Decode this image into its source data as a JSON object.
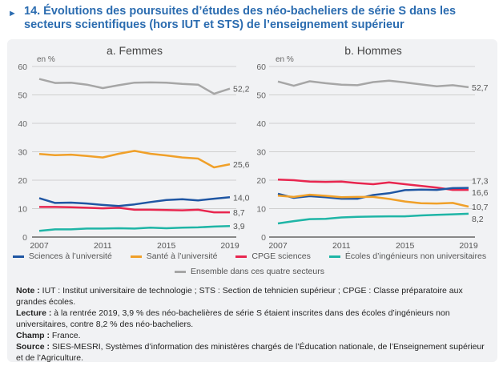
{
  "title": {
    "marker": "►",
    "text": "14. Évolutions des poursuites d’études des néo-bacheliers de série S dans les secteurs scientifiques (hors IUT et STS) de l’enseignement supérieur"
  },
  "colors": {
    "sciences": "#1f56a3",
    "sante": "#f0a029",
    "cpge": "#e8264f",
    "ecoles": "#1fb5a6",
    "ensemble": "#a6a6a6",
    "title": "#2b6cb0"
  },
  "legend": [
    {
      "label": "Sciences à l’université",
      "key": "sciences"
    },
    {
      "label": "Santé à l’université",
      "key": "sante"
    },
    {
      "label": "CPGE sciences",
      "key": "cpge"
    },
    {
      "label": "Écoles d’ingénieurs non universitaires",
      "key": "ecoles"
    },
    {
      "label": "Ensemble dans ces quatre secteurs",
      "key": "ensemble"
    }
  ],
  "chart_data": [
    {
      "type": "line",
      "title": "a. Femmes",
      "ylabel": "en %",
      "ylim": [
        0,
        60
      ],
      "yticks": [
        "0",
        "10",
        "20",
        "30",
        "40",
        "50",
        "60"
      ],
      "xticks": [
        "2007",
        "2011",
        "2015",
        "2019"
      ],
      "grid": true,
      "x": [
        2007,
        2008,
        2009,
        2010,
        2011,
        2012,
        2013,
        2014,
        2015,
        2016,
        2017,
        2018,
        2019
      ],
      "series": [
        {
          "name": "Ensemble dans ces quatre secteurs",
          "key": "ensemble",
          "values": [
            55.6,
            54.2,
            54.3,
            53.6,
            52.4,
            53.4,
            54.3,
            54.4,
            54.3,
            53.9,
            53.6,
            50.4,
            52.2
          ],
          "end_label": "52,2"
        },
        {
          "name": "Santé à l’université",
          "key": "sante",
          "values": [
            29.2,
            28.8,
            29.0,
            28.5,
            28.0,
            29.3,
            30.3,
            29.3,
            28.7,
            28.0,
            27.6,
            24.5,
            25.6
          ],
          "end_label": "25,6"
        },
        {
          "name": "Sciences à l’université",
          "key": "sciences",
          "values": [
            13.7,
            12.0,
            12.1,
            11.8,
            11.3,
            10.9,
            11.5,
            12.3,
            13.0,
            13.3,
            12.9,
            13.5,
            14.0
          ],
          "end_label": "14,0"
        },
        {
          "name": "CPGE sciences",
          "key": "cpge",
          "values": [
            10.6,
            10.6,
            10.5,
            10.3,
            10.1,
            10.3,
            9.6,
            9.6,
            9.5,
            9.4,
            9.6,
            8.7,
            8.7
          ],
          "end_label": "8,7"
        },
        {
          "name": "Écoles d’ingénieurs non universitaires",
          "key": "ecoles",
          "values": [
            2.2,
            2.7,
            2.7,
            3.0,
            3.0,
            3.1,
            3.0,
            3.3,
            3.1,
            3.3,
            3.4,
            3.7,
            3.9
          ],
          "end_label": "3,9"
        }
      ]
    },
    {
      "type": "line",
      "title": "b. Hommes",
      "ylabel": "en %",
      "ylim": [
        0,
        60
      ],
      "yticks": [
        "0",
        "10",
        "20",
        "30",
        "40",
        "50",
        "60"
      ],
      "xticks": [
        "2007",
        "2011",
        "2015",
        "2019"
      ],
      "grid": true,
      "x": [
        2007,
        2008,
        2009,
        2010,
        2011,
        2012,
        2013,
        2014,
        2015,
        2016,
        2017,
        2018,
        2019
      ],
      "series": [
        {
          "name": "Ensemble dans ces quatre secteurs",
          "key": "ensemble",
          "values": [
            54.7,
            53.2,
            54.8,
            54.1,
            53.6,
            53.4,
            54.5,
            55.0,
            54.4,
            53.7,
            53.0,
            53.4,
            52.7
          ],
          "end_label": "52,7"
        },
        {
          "name": "CPGE sciences",
          "key": "cpge",
          "values": [
            20.2,
            20.0,
            19.5,
            19.4,
            19.5,
            19.0,
            18.6,
            19.2,
            18.6,
            18.0,
            17.4,
            16.6,
            16.6
          ],
          "end_label": "16,6"
        },
        {
          "name": "Sciences à l’université",
          "key": "sciences",
          "values": [
            15.2,
            13.8,
            14.4,
            14.0,
            13.5,
            13.5,
            14.8,
            15.4,
            16.5,
            16.7,
            16.6,
            17.2,
            17.3
          ],
          "end_label": "17,3"
        },
        {
          "name": "Santé à l’université",
          "key": "sante",
          "values": [
            14.6,
            14.1,
            14.9,
            14.5,
            14.0,
            14.1,
            14.1,
            13.4,
            12.5,
            11.9,
            11.8,
            12.0,
            10.7
          ],
          "end_label": "10,7"
        },
        {
          "name": "Écoles d’ingénieurs non universitaires",
          "key": "ecoles",
          "values": [
            4.8,
            5.6,
            6.3,
            6.4,
            6.9,
            7.1,
            7.2,
            7.3,
            7.3,
            7.6,
            7.8,
            8.0,
            8.2
          ],
          "end_label": "8,2"
        }
      ]
    }
  ],
  "notes": {
    "note_label": "Note :",
    "note": " IUT : Institut universitaire de technologie ; STS : Section de tehnicien supérieur ; CPGE : Classe préparatoire aux grandes écoles.",
    "lecture_label": "Lecture :",
    "lecture": " à la rentrée 2019, 3,9 % des néo-bachelières de série S étaient inscrites dans des écoles d’ingénieurs non universitaires, contre 8,2 % des néo-bacheliers.",
    "champ_label": "Champ :",
    "champ": " France.",
    "source_label": "Source :",
    "source": " SIES-MESRI, Systèmes d’information des ministères chargés de l’Éducation nationale, de l’Enseignement supérieur et de l’Agriculture."
  }
}
